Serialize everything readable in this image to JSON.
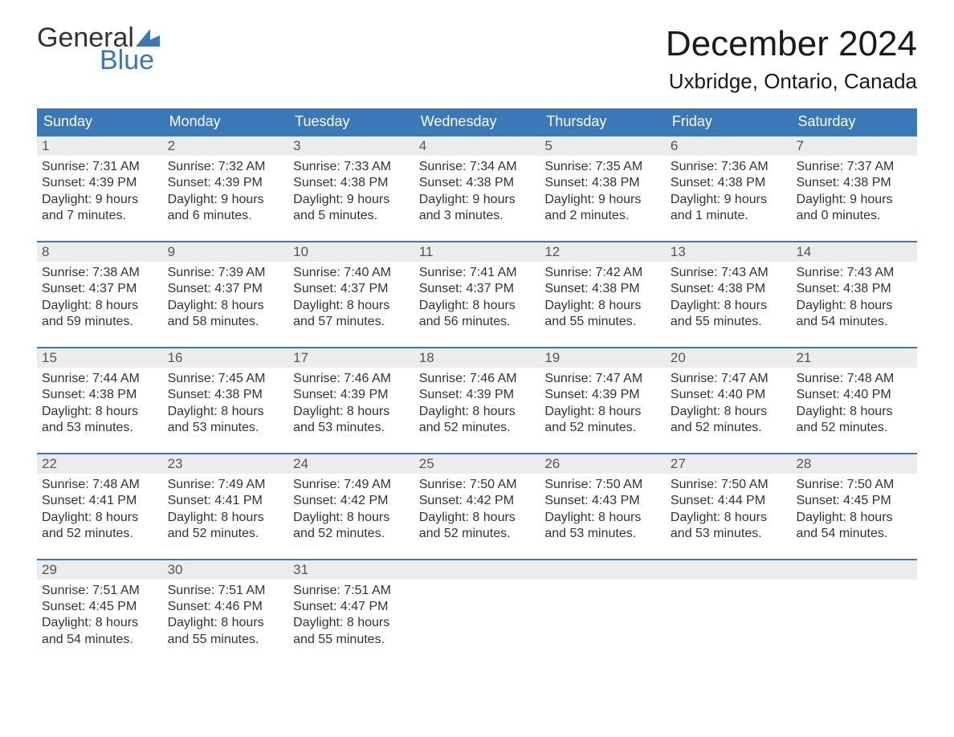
{
  "logo": {
    "word1": "General",
    "word2": "Blue",
    "flag_color": "#3a78b8"
  },
  "title": "December 2024",
  "location": "Uxbridge, Ontario, Canada",
  "colors": {
    "header_bg": "#3a78b8",
    "header_text": "#ffffff",
    "daynum_bg": "#ececec",
    "border": "#3a78b8",
    "text": "#333333"
  },
  "weekdays": [
    "Sunday",
    "Monday",
    "Tuesday",
    "Wednesday",
    "Thursday",
    "Friday",
    "Saturday"
  ],
  "weeks": [
    [
      {
        "n": "1",
        "sr": "Sunrise: 7:31 AM",
        "ss": "Sunset: 4:39 PM",
        "d1": "Daylight: 9 hours",
        "d2": "and 7 minutes."
      },
      {
        "n": "2",
        "sr": "Sunrise: 7:32 AM",
        "ss": "Sunset: 4:39 PM",
        "d1": "Daylight: 9 hours",
        "d2": "and 6 minutes."
      },
      {
        "n": "3",
        "sr": "Sunrise: 7:33 AM",
        "ss": "Sunset: 4:38 PM",
        "d1": "Daylight: 9 hours",
        "d2": "and 5 minutes."
      },
      {
        "n": "4",
        "sr": "Sunrise: 7:34 AM",
        "ss": "Sunset: 4:38 PM",
        "d1": "Daylight: 9 hours",
        "d2": "and 3 minutes."
      },
      {
        "n": "5",
        "sr": "Sunrise: 7:35 AM",
        "ss": "Sunset: 4:38 PM",
        "d1": "Daylight: 9 hours",
        "d2": "and 2 minutes."
      },
      {
        "n": "6",
        "sr": "Sunrise: 7:36 AM",
        "ss": "Sunset: 4:38 PM",
        "d1": "Daylight: 9 hours",
        "d2": "and 1 minute."
      },
      {
        "n": "7",
        "sr": "Sunrise: 7:37 AM",
        "ss": "Sunset: 4:38 PM",
        "d1": "Daylight: 9 hours",
        "d2": "and 0 minutes."
      }
    ],
    [
      {
        "n": "8",
        "sr": "Sunrise: 7:38 AM",
        "ss": "Sunset: 4:37 PM",
        "d1": "Daylight: 8 hours",
        "d2": "and 59 minutes."
      },
      {
        "n": "9",
        "sr": "Sunrise: 7:39 AM",
        "ss": "Sunset: 4:37 PM",
        "d1": "Daylight: 8 hours",
        "d2": "and 58 minutes."
      },
      {
        "n": "10",
        "sr": "Sunrise: 7:40 AM",
        "ss": "Sunset: 4:37 PM",
        "d1": "Daylight: 8 hours",
        "d2": "and 57 minutes."
      },
      {
        "n": "11",
        "sr": "Sunrise: 7:41 AM",
        "ss": "Sunset: 4:37 PM",
        "d1": "Daylight: 8 hours",
        "d2": "and 56 minutes."
      },
      {
        "n": "12",
        "sr": "Sunrise: 7:42 AM",
        "ss": "Sunset: 4:38 PM",
        "d1": "Daylight: 8 hours",
        "d2": "and 55 minutes."
      },
      {
        "n": "13",
        "sr": "Sunrise: 7:43 AM",
        "ss": "Sunset: 4:38 PM",
        "d1": "Daylight: 8 hours",
        "d2": "and 55 minutes."
      },
      {
        "n": "14",
        "sr": "Sunrise: 7:43 AM",
        "ss": "Sunset: 4:38 PM",
        "d1": "Daylight: 8 hours",
        "d2": "and 54 minutes."
      }
    ],
    [
      {
        "n": "15",
        "sr": "Sunrise: 7:44 AM",
        "ss": "Sunset: 4:38 PM",
        "d1": "Daylight: 8 hours",
        "d2": "and 53 minutes."
      },
      {
        "n": "16",
        "sr": "Sunrise: 7:45 AM",
        "ss": "Sunset: 4:38 PM",
        "d1": "Daylight: 8 hours",
        "d2": "and 53 minutes."
      },
      {
        "n": "17",
        "sr": "Sunrise: 7:46 AM",
        "ss": "Sunset: 4:39 PM",
        "d1": "Daylight: 8 hours",
        "d2": "and 53 minutes."
      },
      {
        "n": "18",
        "sr": "Sunrise: 7:46 AM",
        "ss": "Sunset: 4:39 PM",
        "d1": "Daylight: 8 hours",
        "d2": "and 52 minutes."
      },
      {
        "n": "19",
        "sr": "Sunrise: 7:47 AM",
        "ss": "Sunset: 4:39 PM",
        "d1": "Daylight: 8 hours",
        "d2": "and 52 minutes."
      },
      {
        "n": "20",
        "sr": "Sunrise: 7:47 AM",
        "ss": "Sunset: 4:40 PM",
        "d1": "Daylight: 8 hours",
        "d2": "and 52 minutes."
      },
      {
        "n": "21",
        "sr": "Sunrise: 7:48 AM",
        "ss": "Sunset: 4:40 PM",
        "d1": "Daylight: 8 hours",
        "d2": "and 52 minutes."
      }
    ],
    [
      {
        "n": "22",
        "sr": "Sunrise: 7:48 AM",
        "ss": "Sunset: 4:41 PM",
        "d1": "Daylight: 8 hours",
        "d2": "and 52 minutes."
      },
      {
        "n": "23",
        "sr": "Sunrise: 7:49 AM",
        "ss": "Sunset: 4:41 PM",
        "d1": "Daylight: 8 hours",
        "d2": "and 52 minutes."
      },
      {
        "n": "24",
        "sr": "Sunrise: 7:49 AM",
        "ss": "Sunset: 4:42 PM",
        "d1": "Daylight: 8 hours",
        "d2": "and 52 minutes."
      },
      {
        "n": "25",
        "sr": "Sunrise: 7:50 AM",
        "ss": "Sunset: 4:42 PM",
        "d1": "Daylight: 8 hours",
        "d2": "and 52 minutes."
      },
      {
        "n": "26",
        "sr": "Sunrise: 7:50 AM",
        "ss": "Sunset: 4:43 PM",
        "d1": "Daylight: 8 hours",
        "d2": "and 53 minutes."
      },
      {
        "n": "27",
        "sr": "Sunrise: 7:50 AM",
        "ss": "Sunset: 4:44 PM",
        "d1": "Daylight: 8 hours",
        "d2": "and 53 minutes."
      },
      {
        "n": "28",
        "sr": "Sunrise: 7:50 AM",
        "ss": "Sunset: 4:45 PM",
        "d1": "Daylight: 8 hours",
        "d2": "and 54 minutes."
      }
    ],
    [
      {
        "n": "29",
        "sr": "Sunrise: 7:51 AM",
        "ss": "Sunset: 4:45 PM",
        "d1": "Daylight: 8 hours",
        "d2": "and 54 minutes."
      },
      {
        "n": "30",
        "sr": "Sunrise: 7:51 AM",
        "ss": "Sunset: 4:46 PM",
        "d1": "Daylight: 8 hours",
        "d2": "and 55 minutes."
      },
      {
        "n": "31",
        "sr": "Sunrise: 7:51 AM",
        "ss": "Sunset: 4:47 PM",
        "d1": "Daylight: 8 hours",
        "d2": "and 55 minutes."
      },
      {
        "empty": true
      },
      {
        "empty": true
      },
      {
        "empty": true
      },
      {
        "empty": true
      }
    ]
  ]
}
